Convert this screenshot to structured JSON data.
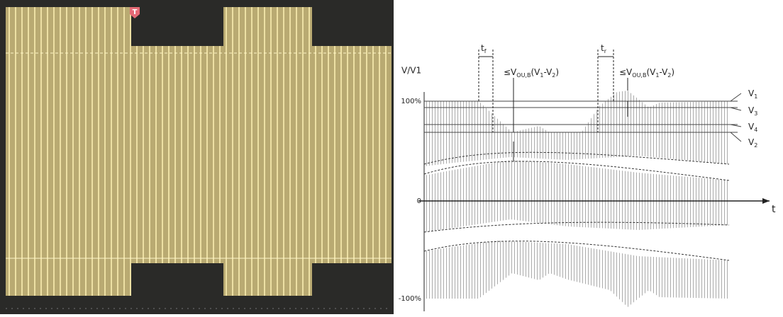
{
  "oscilloscope": {
    "trigger_marker": "T"
  },
  "diagram": {
    "y_axis_label": "V/V1",
    "x_axis_label": "t",
    "y_labels": [
      "100%",
      "0",
      "-100%"
    ],
    "fall_time": [
      {
        "text": "t"
      },
      {
        "sub": "f"
      }
    ],
    "rise_time": [
      {
        "text": "t"
      },
      {
        "sub": "r"
      }
    ],
    "overshoot_labels": [
      [
        {
          "text": "≤V"
        },
        {
          "sub": "OU,B"
        },
        {
          "text": "(V"
        },
        {
          "sub": "1"
        },
        {
          "text": "-V"
        },
        {
          "sub": "2"
        },
        {
          "text": ")"
        }
      ],
      [
        {
          "text": "≤V"
        },
        {
          "sub": "OU,B"
        },
        {
          "text": "(V"
        },
        {
          "sub": "1"
        },
        {
          "text": "-V"
        },
        {
          "sub": "2"
        },
        {
          "text": ")"
        }
      ]
    ],
    "levels": [
      [
        {
          "text": "V"
        },
        {
          "sub": "1"
        }
      ],
      [
        {
          "text": "V"
        },
        {
          "sub": "3"
        }
      ],
      [
        {
          "text": "V"
        },
        {
          "sub": "4"
        }
      ],
      [
        {
          "text": "V"
        },
        {
          "sub": "2"
        }
      ]
    ]
  }
}
